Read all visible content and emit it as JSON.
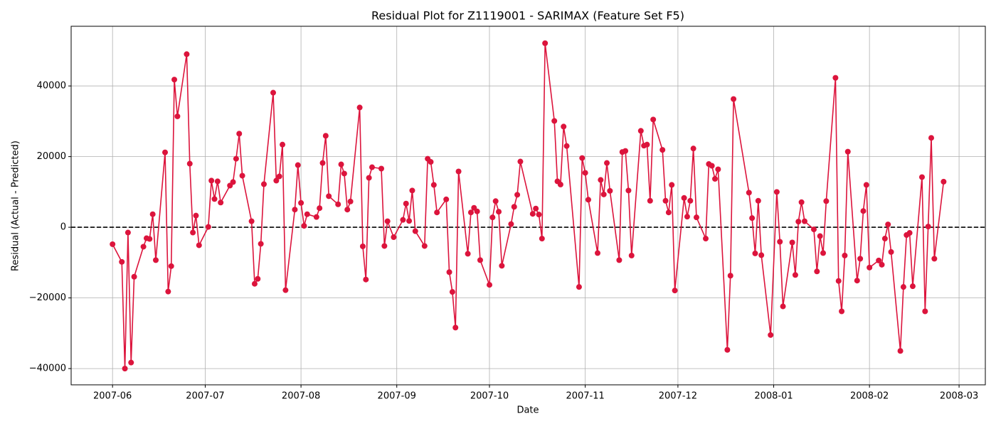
{
  "chart_data": {
    "type": "line",
    "title": "Residual Plot for Z1119001 - SARIMAX (Feature Set F5)",
    "xlabel": "Date",
    "ylabel": "Residual (Actual - Predicted)",
    "color": "#dc143c",
    "grid": true,
    "hline": 0,
    "xlim": [
      -13.4,
      282.5
    ],
    "xticks": [
      {
        "value": 0,
        "label": "2007-06"
      },
      {
        "value": 30,
        "label": "2007-07"
      },
      {
        "value": 61,
        "label": "2007-08"
      },
      {
        "value": 92,
        "label": "2007-09"
      },
      {
        "value": 122,
        "label": "2007-10"
      },
      {
        "value": 153,
        "label": "2007-11"
      },
      {
        "value": 183,
        "label": "2007-12"
      },
      {
        "value": 214,
        "label": "2008-01"
      },
      {
        "value": 245,
        "label": "2008-02"
      },
      {
        "value": 274,
        "label": "2008-03"
      }
    ],
    "ylim": [
      -44600,
      56900
    ],
    "yticks": [
      {
        "value": -40000,
        "label": "−40000"
      },
      {
        "value": -20000,
        "label": "−20000"
      },
      0,
      20000,
      40000
    ],
    "x": [
      0,
      3,
      4,
      5,
      6,
      7,
      10,
      11,
      12,
      13,
      14,
      17,
      18,
      19,
      20,
      21,
      24,
      25,
      26,
      27,
      28,
      31,
      32,
      33,
      34,
      35,
      38,
      39,
      40,
      41,
      42,
      45,
      46,
      47,
      48,
      49,
      52,
      53,
      54,
      55,
      56,
      59,
      60,
      61,
      62,
      63,
      66,
      67,
      68,
      69,
      70,
      73,
      74,
      75,
      76,
      77,
      80,
      81,
      82,
      83,
      84,
      87,
      88,
      89,
      91,
      94,
      95,
      96,
      97,
      98,
      101,
      102,
      103,
      104,
      105,
      108,
      109,
      110,
      111,
      112,
      115,
      116,
      117,
      118,
      119,
      122,
      123,
      124,
      125,
      126,
      129,
      130,
      131,
      132,
      136,
      137,
      138,
      139,
      140,
      143,
      144,
      145,
      146,
      147,
      151,
      152,
      153,
      154,
      157,
      158,
      159,
      160,
      161,
      164,
      165,
      166,
      167,
      168,
      171,
      172,
      173,
      174,
      175,
      178,
      179,
      180,
      181,
      182,
      185,
      186,
      187,
      188,
      189,
      192,
      193,
      194,
      195,
      196,
      199,
      200,
      201,
      206,
      207,
      208,
      209,
      210,
      213,
      215,
      216,
      217,
      220,
      221,
      222,
      223,
      224,
      227,
      228,
      229,
      230,
      231,
      234,
      235,
      236,
      237,
      238,
      241,
      242,
      243,
      244,
      245,
      248,
      249,
      250,
      251,
      252,
      255,
      256,
      257,
      258,
      259,
      262,
      263,
      264,
      265,
      266,
      269
    ],
    "values": [
      -4800,
      -9800,
      -40000,
      -1500,
      -38300,
      -14000,
      -5500,
      -3100,
      -3300,
      3700,
      -9300,
      21200,
      -18200,
      -11000,
      41800,
      31400,
      49000,
      18000,
      -1500,
      3300,
      -5100,
      100,
      13200,
      8000,
      13000,
      7000,
      11800,
      12800,
      19400,
      26500,
      14600,
      1700,
      -16000,
      -14600,
      -4700,
      12200,
      38100,
      13200,
      14400,
      23400,
      -17800,
      5000,
      17600,
      6900,
      400,
      3700,
      2900,
      5400,
      18200,
      25900,
      8800,
      6500,
      17800,
      15200,
      5000,
      7300,
      33900,
      -5400,
      -14800,
      14000,
      17000,
      16600,
      -5300,
      1700,
      -2800,
      2100,
      6700,
      1800,
      10400,
      -1100,
      -5300,
      19400,
      18500,
      12000,
      4200,
      7900,
      -12700,
      -18300,
      -28400,
      15800,
      -7500,
      4200,
      5500,
      4500,
      -9300,
      -16300,
      2800,
      7400,
      4400,
      -10900,
      900,
      5800,
      9200,
      18600,
      3800,
      5300,
      3600,
      -3200,
      52100,
      30100,
      13000,
      12100,
      28500,
      23000,
      -16900,
      19600,
      15400,
      7800,
      -7300,
      13400,
      9300,
      18200,
      10300,
      -9300,
      21300,
      21600,
      10400,
      -8000,
      27300,
      23100,
      23400,
      7500,
      30500,
      21900,
      7500,
      4200,
      12000,
      -17900,
      8300,
      3000,
      7500,
      22300,
      2800,
      -3200,
      17900,
      17400,
      13700,
      16400,
      -34700,
      -13700,
      36300,
      9800,
      2600,
      -7400,
      7500,
      -7900,
      -30500,
      10000,
      -4100,
      -22400,
      -4300,
      -13500,
      1600,
      7100,
      1700,
      -600,
      -12500,
      -2500,
      -7300,
      7400,
      42300,
      -15200,
      -23800,
      -8000,
      21400,
      -15100,
      -8900,
      4600,
      12000,
      -11400,
      -9400,
      -10600,
      -3200,
      800,
      -7000,
      -35000,
      -16900,
      -2200,
      -1600,
      -16700,
      14200,
      -23800,
      200,
      25300,
      -8900,
      12900
    ]
  }
}
